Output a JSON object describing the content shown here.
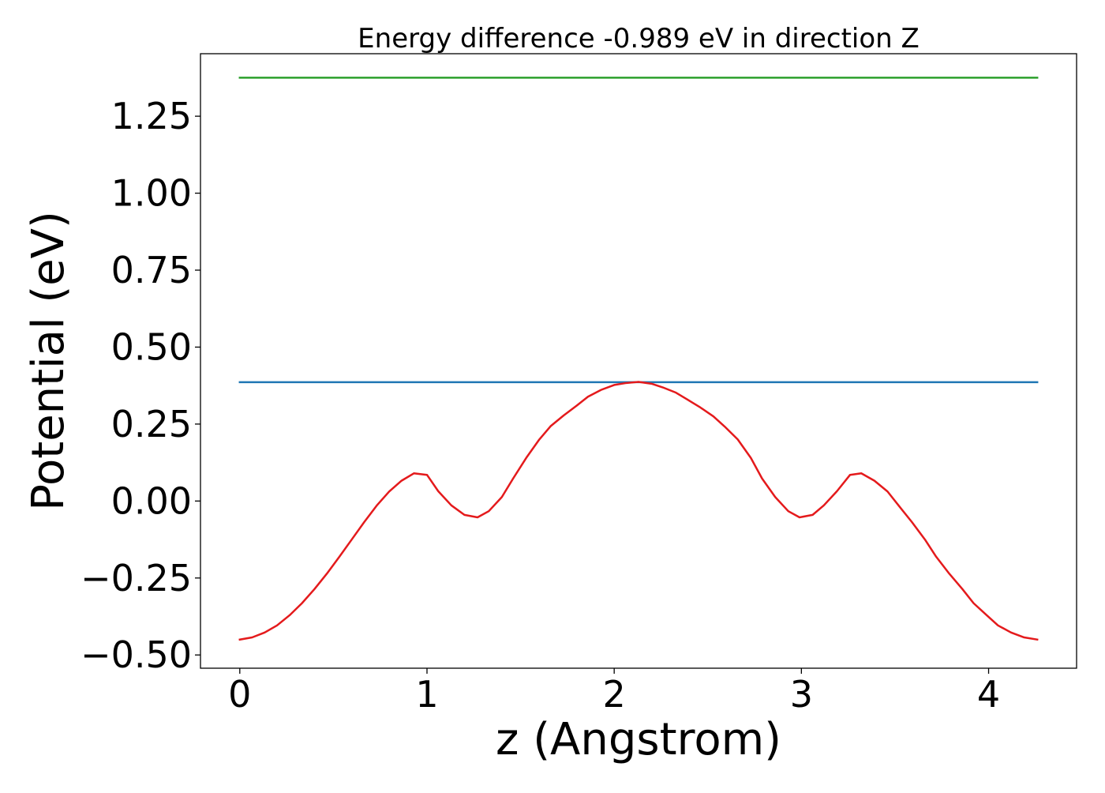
{
  "chart_data": {
    "type": "line",
    "title": "Energy difference -0.989 eV in direction Z",
    "xlabel": "z (Angstrom)",
    "ylabel": "Potential (eV)",
    "xlim": [
      -0.21,
      4.47
    ],
    "ylim": [
      -0.543,
      1.453
    ],
    "xticks": [
      0,
      1,
      2,
      3,
      4
    ],
    "xtick_labels": [
      "0",
      "1",
      "2",
      "3",
      "4"
    ],
    "yticks": [
      -0.5,
      -0.25,
      0.0,
      0.25,
      0.5,
      0.75,
      1.0,
      1.25
    ],
    "ytick_labels": [
      "−0.50",
      "−0.25",
      "0.00",
      "0.25",
      "0.50",
      "0.75",
      "1.00",
      "1.25"
    ],
    "grid": false,
    "legend": "none",
    "series": [
      {
        "color": "#2ca02c",
        "x": [
          0.0,
          4.26
        ],
        "y": [
          1.375,
          1.375
        ]
      },
      {
        "color": "#1f77b4",
        "x": [
          0.0,
          4.26
        ],
        "y": [
          0.386,
          0.386
        ]
      },
      {
        "color": "#e41a1c",
        "x": [
          0.0,
          0.066,
          0.133,
          0.199,
          0.266,
          0.332,
          0.399,
          0.465,
          0.532,
          0.598,
          0.665,
          0.731,
          0.798,
          0.864,
          0.93,
          1.0,
          1.06,
          1.13,
          1.2,
          1.27,
          1.33,
          1.4,
          1.46,
          1.53,
          1.6,
          1.66,
          1.73,
          1.8,
          1.86,
          1.93,
          2.0,
          2.06,
          2.13,
          2.2,
          2.26,
          2.33,
          2.39,
          2.46,
          2.53,
          2.59,
          2.66,
          2.73,
          2.79,
          2.86,
          2.93,
          2.99,
          3.06,
          3.12,
          3.19,
          3.26,
          3.32,
          3.39,
          3.46,
          3.52,
          3.59,
          3.66,
          3.72,
          3.79,
          3.86,
          3.92,
          3.99,
          4.05,
          4.12,
          4.19,
          4.26
        ],
        "y": [
          -0.45,
          -0.443,
          -0.427,
          -0.404,
          -0.371,
          -0.332,
          -0.286,
          -0.236,
          -0.181,
          -0.125,
          -0.068,
          -0.015,
          0.031,
          0.066,
          0.09,
          0.085,
          0.032,
          -0.014,
          -0.045,
          -0.053,
          -0.033,
          0.013,
          0.073,
          0.14,
          0.2,
          0.243,
          0.278,
          0.31,
          0.339,
          0.361,
          0.377,
          0.383,
          0.387,
          0.381,
          0.369,
          0.352,
          0.33,
          0.304,
          0.275,
          0.242,
          0.2,
          0.14,
          0.073,
          0.013,
          -0.033,
          -0.053,
          -0.045,
          -0.014,
          0.032,
          0.085,
          0.09,
          0.066,
          0.031,
          -0.015,
          -0.068,
          -0.125,
          -0.181,
          -0.236,
          -0.286,
          -0.332,
          -0.371,
          -0.404,
          -0.427,
          -0.443,
          -0.45
        ]
      }
    ]
  }
}
